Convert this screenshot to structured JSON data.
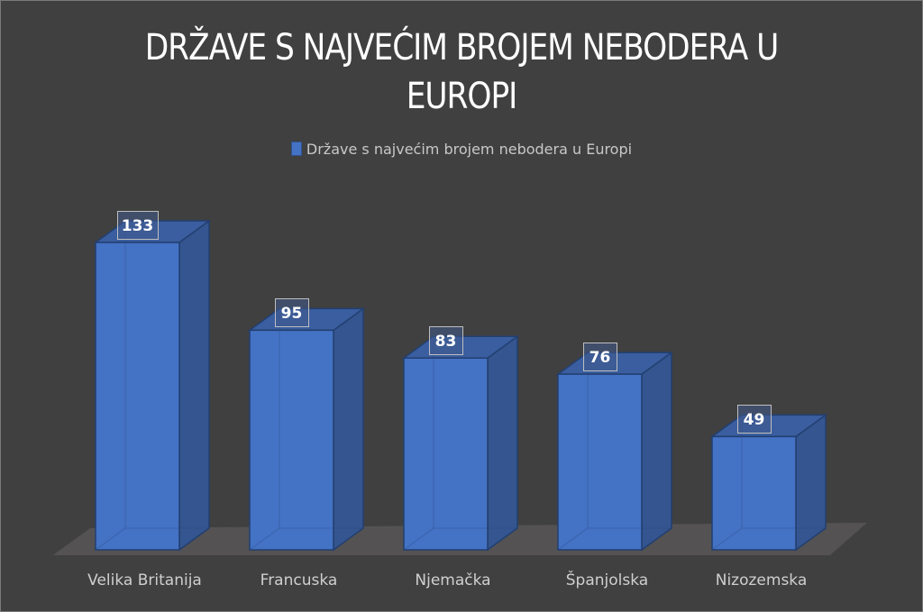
{
  "chart_data": {
    "type": "bar",
    "style": "3d-column",
    "title": "DRŽAVE S NAJVEĆIM BROJEM NEBODERA U EUROPI",
    "title_lines": [
      "DRŽAVE S NAJVEĆIM BROJEM NEBODERA U",
      "EUROPI"
    ],
    "legend": {
      "position": "top",
      "entries": [
        "Države s najvećim brojem nebodera u Europi"
      ]
    },
    "categories": [
      "Velika Britanija",
      "Francuska",
      "Njemačka",
      "Španjolska",
      "Nizozemska"
    ],
    "series": [
      {
        "name": "Države s najvećim brojem nebodera u Europi",
        "values": [
          133,
          95,
          83,
          76,
          49
        ],
        "color": "#4472c4"
      }
    ],
    "data_labels": [
      "133",
      "95",
      "83",
      "76",
      "49"
    ],
    "xlabel": "",
    "ylabel": "",
    "grid": false,
    "background": "#404040"
  }
}
